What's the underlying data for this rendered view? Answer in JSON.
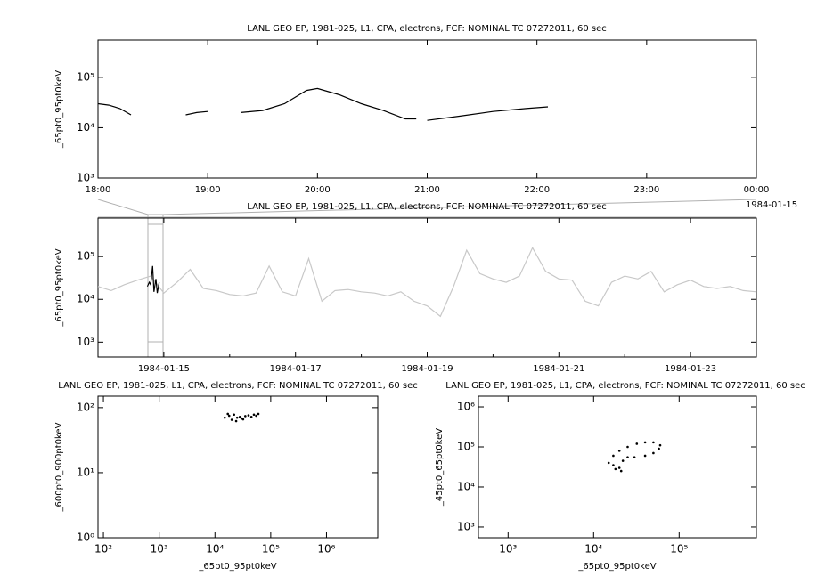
{
  "chart_data": [
    {
      "type": "line",
      "title": "LANL GEO EP, 1981-025, L1, CPA, electrons, FCF: NOMINAL TC 07272011, 60 sec",
      "y_label": "_65pt0_95pt0keV",
      "ylog": true,
      "ylim": [
        1000,
        550000
      ],
      "yticks": [
        {
          "value": 1000,
          "label": "10³"
        },
        {
          "value": 10000,
          "label": "10⁴"
        },
        {
          "value": 100000,
          "label": "10⁵"
        }
      ],
      "xlim": [
        18,
        24
      ],
      "xticks": [
        {
          "value": 18,
          "label": "18:00"
        },
        {
          "value": 19,
          "label": "19:00"
        },
        {
          "value": 20,
          "label": "20:00"
        },
        {
          "value": 21,
          "label": "21:00"
        },
        {
          "value": 22,
          "label": "22:00"
        },
        {
          "value": 23,
          "label": "23:00"
        },
        {
          "value": 24,
          "label": "00:00"
        }
      ],
      "x_date_label": "1984-01-15",
      "series": [
        {
          "color": "#000000",
          "x": [
            18.0,
            18.1,
            18.2,
            18.3,
            18.5,
            18.8,
            18.9,
            19.0,
            19.15,
            19.3,
            19.5,
            19.7,
            19.9,
            20.0,
            20.2,
            20.4,
            20.6,
            20.8,
            20.9,
            20.95,
            21.0,
            21.3,
            21.6,
            21.9,
            22.1
          ],
          "values": [
            30000,
            28000,
            24000,
            18000,
            null,
            18000,
            20000,
            21000,
            null,
            20000,
            22000,
            30000,
            55000,
            60000,
            45000,
            30000,
            22000,
            15000,
            15000,
            null,
            14000,
            17000,
            21000,
            24000,
            26000
          ]
        }
      ]
    },
    {
      "type": "line",
      "title": "LANL GEO EP, 1981-025, L1, CPA, electrons, FCF: NOMINAL TC 07272011, 60 sec",
      "y_label": "_65pt0_95pt0keV",
      "ylog": true,
      "ylim": [
        450,
        790000
      ],
      "yticks": [
        {
          "value": 1000,
          "label": "10³"
        },
        {
          "value": 10000,
          "label": "10⁴"
        },
        {
          "value": 100000,
          "label": "10⁵"
        }
      ],
      "xlim": [
        14,
        24
      ],
      "xticks": [
        {
          "value": 15,
          "label": "1984-01-15"
        },
        {
          "value": 17,
          "label": "1984-01-17"
        },
        {
          "value": 19,
          "label": "1984-01-19"
        },
        {
          "value": 21,
          "label": "1984-01-21"
        },
        {
          "value": 23,
          "label": "1984-01-23"
        }
      ],
      "xminor": [
        16,
        18,
        20,
        22
      ],
      "series": [
        {
          "color": "#c8c8c8",
          "x": [
            14.0,
            14.2,
            14.4,
            14.6,
            14.8,
            15.0,
            15.2,
            15.4,
            15.6,
            15.8,
            16.0,
            16.2,
            16.4,
            16.6,
            16.8,
            17.0,
            17.2,
            17.4,
            17.6,
            17.8,
            18.0,
            18.2,
            18.4,
            18.6,
            18.8,
            19.0,
            19.2,
            19.4,
            19.6,
            19.8,
            20.0,
            20.2,
            20.4,
            20.6,
            20.8,
            21.0,
            21.2,
            21.4,
            21.6,
            21.8,
            22.0,
            22.2,
            22.4,
            22.6,
            22.8,
            23.0,
            23.2,
            23.4,
            23.6,
            23.8,
            24.0
          ],
          "values": [
            20000,
            16000,
            22000,
            28000,
            35000,
            14000,
            25000,
            50000,
            18000,
            16000,
            13000,
            12000,
            14000,
            60000,
            15000,
            12000,
            90000,
            9000,
            16000,
            17000,
            15000,
            14000,
            12000,
            15000,
            9000,
            7000,
            4000,
            20000,
            140000,
            40000,
            30000,
            25000,
            35000,
            160000,
            45000,
            30000,
            28000,
            9000,
            7000,
            25000,
            35000,
            30000,
            45000,
            15000,
            22000,
            28000,
            20000,
            18000,
            20000,
            16000,
            15000
          ]
        },
        {
          "color": "#000000",
          "x": [
            14.75,
            14.78,
            14.8,
            14.83,
            14.85,
            14.88,
            14.9,
            14.93
          ],
          "values": [
            20000,
            25000,
            22000,
            60000,
            15000,
            30000,
            14000,
            25000
          ]
        }
      ]
    },
    {
      "type": "scatter",
      "title": "LANL GEO EP, 1981-025, L1, CPA, electrons, FCF: NOMINAL TC 07272011, 60 sec",
      "x_label": "_65pt0_95pt0keV",
      "y_label": "_600pt0_900pt0keV",
      "xlog": true,
      "ylog": true,
      "xlim": [
        80,
        8300000
      ],
      "ylim": [
        1,
        150
      ],
      "xticks": [
        {
          "value": 100,
          "label": "10²"
        },
        {
          "value": 1000,
          "label": "10³"
        },
        {
          "value": 10000,
          "label": "10⁴"
        },
        {
          "value": 100000,
          "label": "10⁵"
        },
        {
          "value": 1000000,
          "label": "10⁶"
        }
      ],
      "yticks": [
        {
          "value": 1,
          "label": "10⁰"
        },
        {
          "value": 10,
          "label": "10¹"
        },
        {
          "value": 100,
          "label": "10²"
        }
      ],
      "series": [
        {
          "color": "#000000",
          "x": [
            15000,
            18000,
            20000,
            22000,
            25000,
            28000,
            30000,
            35000,
            40000,
            45000,
            50000,
            55000,
            60000,
            17000,
            24000,
            32000
          ],
          "values": [
            70,
            75,
            65,
            78,
            70,
            72,
            68,
            74,
            76,
            72,
            78,
            75,
            80,
            80,
            62,
            66
          ]
        }
      ]
    },
    {
      "type": "scatter",
      "title": "LANL GEO EP, 1981-025, L1, CPA, electrons, FCF: NOMINAL TC 07272011, 60 sec",
      "x_label": "_65pt0_95pt0keV",
      "y_label": "_45pt0_65pt0keV",
      "xlog": true,
      "ylog": true,
      "xlim": [
        450,
        800000
      ],
      "ylim": [
        540,
        1850000
      ],
      "xticks": [
        {
          "value": 1000,
          "label": "10³"
        },
        {
          "value": 10000,
          "label": "10⁴"
        },
        {
          "value": 100000,
          "label": "10⁵"
        }
      ],
      "yticks": [
        {
          "value": 1000,
          "label": "10³"
        },
        {
          "value": 10000,
          "label": "10⁴"
        },
        {
          "value": 100000,
          "label": "10⁵"
        },
        {
          "value": 1000000,
          "label": "10⁶"
        }
      ],
      "series": [
        {
          "color": "#000000",
          "x": [
            15000,
            17000,
            20000,
            25000,
            32000,
            40000,
            50000,
            60000,
            58000,
            50000,
            40000,
            30000,
            22000,
            20000,
            18000,
            21000,
            25000,
            17000
          ],
          "values": [
            40000,
            60000,
            80000,
            100000,
            120000,
            130000,
            130000,
            110000,
            90000,
            70000,
            60000,
            55000,
            45000,
            30000,
            28000,
            25000,
            55000,
            35000
          ]
        }
      ]
    }
  ]
}
